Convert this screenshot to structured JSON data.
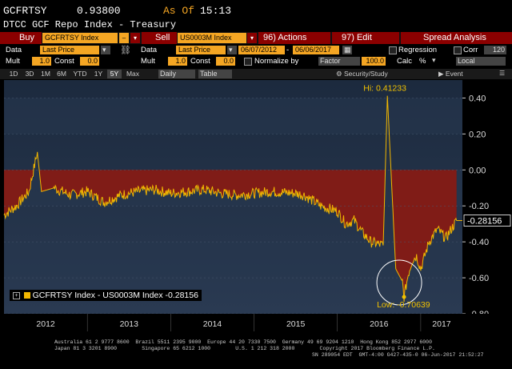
{
  "header": {
    "ticker": "GCFRTSY",
    "price": "0.93800",
    "as_of_label": "As Of",
    "time": "15:13",
    "description": "DTCC GCF Repo Index - Treasury"
  },
  "toolbar": {
    "buy_label": "Buy",
    "buy_security": "GCFRTSY Index",
    "sell_label": "Sell",
    "sell_security": "US0003M Index",
    "actions_label": "96) Actions",
    "edit_label": "97) Edit",
    "title": "Spread Analysis"
  },
  "params_left": {
    "data_label": "Data",
    "data_value": "Last Price",
    "mult_label": "Mult",
    "mult_value": "1.0",
    "const_label": "Const",
    "const_value": "0.0"
  },
  "params_right": {
    "data_label": "Data",
    "data_value": "Last Price",
    "mult_label": "Mult",
    "mult_value": "1.0",
    "const_label": "Const",
    "const_value": "0.0",
    "start_date": "06/07/2012",
    "end_date": "06/06/2017",
    "normalize_label": "Normalize by",
    "regression_label": "Regression",
    "corr_label": "Corr",
    "corr_value": "120",
    "factor_label": "Factor",
    "factor_value": "100.0",
    "calc_label": "Calc",
    "calc_value": "%",
    "local_label": "Local"
  },
  "range_tabs": [
    "1D",
    "3D",
    "1M",
    "6M",
    "YTD",
    "1Y",
    "5Y",
    "Max"
  ],
  "active_range": "5Y",
  "period_label": "Daily",
  "table_label": "Table",
  "security_study_label": "Security/Study",
  "event_label": "Event",
  "legend_text": "GCFRTSY Index - US0003M Index -0.28156",
  "colors": {
    "amber": "#f5a623",
    "series": "#f2b700",
    "fill": "#8b1a12",
    "hi": "#f2c200"
  },
  "chart_data": {
    "type": "area",
    "title": "",
    "xlabel": "",
    "ylabel": "",
    "x_ticks": [
      "2012",
      "2013",
      "2014",
      "2015",
      "2016",
      "2017"
    ],
    "x_tick_positions": [
      2012.5,
      2013.5,
      2014.5,
      2015.5,
      2016.5,
      2017.25
    ],
    "ylim": [
      -0.8,
      0.5
    ],
    "y_ticks": [
      "0.40",
      "0.20",
      "0.00",
      "-0.20",
      "-0.40",
      "-0.60",
      "-0.80"
    ],
    "y_tick_values": [
      0.4,
      0.2,
      0.0,
      -0.2,
      -0.4,
      -0.6,
      -0.8
    ],
    "xlim": [
      2012.0,
      2017.5
    ],
    "x": [
      2012.0,
      2012.15,
      2012.3,
      2012.4,
      2012.45,
      2012.6,
      2012.8,
      2013.0,
      2013.2,
      2013.4,
      2013.6,
      2013.8,
      2014.0,
      2014.2,
      2014.4,
      2014.6,
      2014.8,
      2015.0,
      2015.2,
      2015.5,
      2015.6,
      2015.8,
      2016.0,
      2016.1,
      2016.2,
      2016.3,
      2016.4,
      2016.55,
      2016.6,
      2016.7,
      2016.78,
      2016.8,
      2016.85,
      2016.9,
      2016.95,
      2017.0,
      2017.1,
      2017.2,
      2017.3,
      2017.43
    ],
    "values": [
      -0.25,
      -0.2,
      -0.12,
      0.1,
      -0.12,
      -0.1,
      -0.14,
      -0.12,
      -0.18,
      -0.14,
      -0.12,
      -0.11,
      -0.13,
      -0.12,
      -0.11,
      -0.13,
      -0.14,
      -0.13,
      -0.12,
      -0.13,
      -0.14,
      -0.2,
      -0.23,
      -0.3,
      -0.28,
      -0.35,
      -0.4,
      -0.42,
      0.41233,
      -0.55,
      -0.62,
      -0.70639,
      -0.58,
      -0.5,
      -0.48,
      -0.55,
      -0.4,
      -0.33,
      -0.38,
      -0.28156
    ],
    "high_label": "Hi: 0.41233",
    "low_label": "Low: -0.70639",
    "last_value_label": "-0.28156",
    "grid": true,
    "legend": "bottom-left"
  },
  "footer": {
    "line1": "Australia 61 2 9777 8600  Brazil 5511 2395 9000  Europe 44 20 7330 7500  Germany 49 69 9204 1210  Hong Kong 852 2977 6000",
    "line2": "Japan 81 3 3201 8900        Singapore 65 6212 1000        U.S. 1 212 318 2000        Copyright 2017 Bloomberg Finance L.P.",
    "line3": "SN 289054 EDT  GMT-4:00 G427-435-0 06-Jun-2017 21:52:27"
  }
}
